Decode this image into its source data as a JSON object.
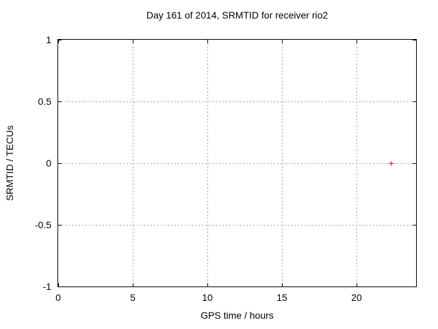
{
  "chart_data": {
    "type": "scatter",
    "title": "Day 161 of 2014, SRMTID for receiver rio2",
    "xlabel": "GPS time / hours",
    "ylabel": "SRMTID / TECUs",
    "xlim": [
      0,
      24
    ],
    "ylim": [
      -1,
      1
    ],
    "xticks": [
      0,
      5,
      10,
      15,
      20
    ],
    "yticks": [
      -1,
      -0.5,
      0,
      0.5,
      1
    ],
    "grid": true,
    "legend": "none",
    "series": [
      {
        "name": "SRMTID",
        "marker": "plus",
        "color": "#ff0000",
        "points": [
          {
            "x": 22.3,
            "y": 0.0
          }
        ]
      }
    ]
  },
  "style": {
    "background": "#ffffff",
    "axis_color": "#000000",
    "grid_color": "#a0a0a0",
    "text_color": "#000000"
  }
}
